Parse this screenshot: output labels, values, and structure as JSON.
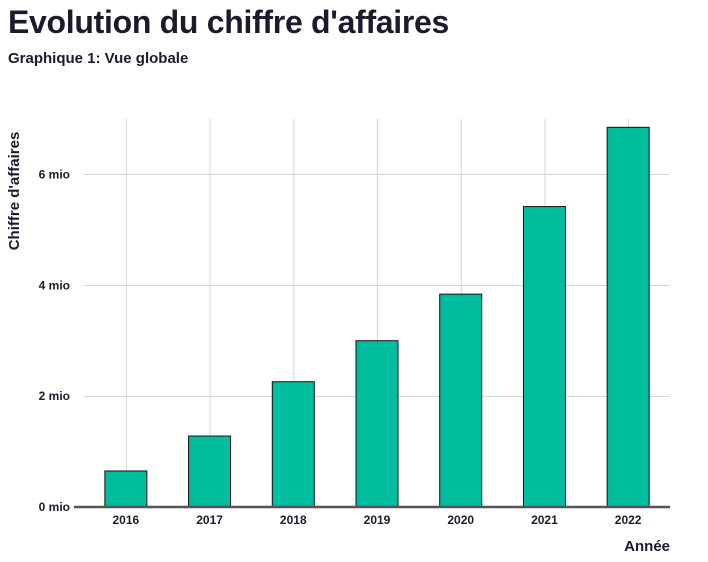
{
  "chart_data": {
    "type": "bar",
    "title": "Evolution du chiffre d'affaires",
    "subtitle": "Graphique 1: Vue globale",
    "xlabel": "Année",
    "ylabel": "Chiffre d'affaires",
    "categories": [
      "2016",
      "2017",
      "2018",
      "2019",
      "2020",
      "2021",
      "2022"
    ],
    "values": [
      650000,
      1280000,
      2260000,
      3000000,
      3840000,
      5420000,
      6850000
    ],
    "ylim": [
      0,
      7000000
    ],
    "yticks": [
      0,
      2000000,
      4000000,
      6000000
    ],
    "ytick_labels": [
      "0 mio",
      "2 mio",
      "4 mio",
      "6 mio"
    ],
    "grid": true,
    "bar_color": "#00bd9d",
    "bar_edge_color": "#111111",
    "axis_color": "#555555",
    "grid_color": "#d6d6d6"
  }
}
